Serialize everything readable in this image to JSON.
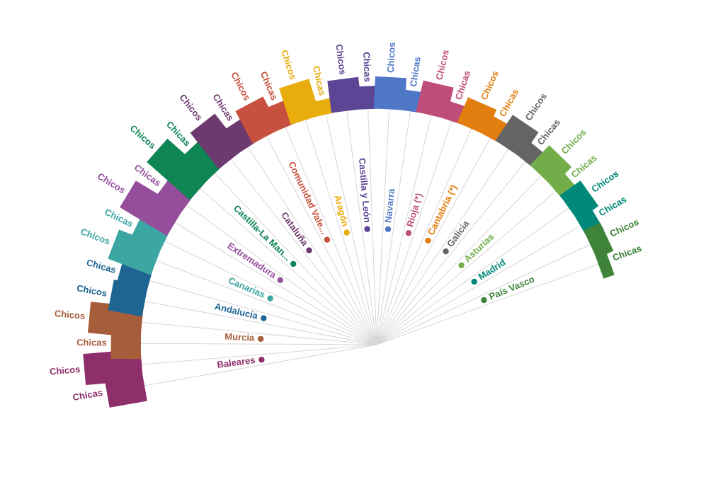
{
  "chart_data": {
    "type": "bar",
    "subtype": "radial",
    "value_scale": "relative (no axis printed; values read as bar lengths)",
    "series_labels": [
      "Chicos",
      "Chicas"
    ],
    "regions": [
      {
        "name": "Baleares",
        "color": "#8e2e6a",
        "bars": [
          {
            "label": "Chicas",
            "value": 83
          },
          {
            "label": "Chicos",
            "value": 125
          }
        ]
      },
      {
        "name": "Murcia",
        "color": "#a65d3a",
        "bars": [
          {
            "label": "Chicas",
            "value": 65
          },
          {
            "label": "Chicos",
            "value": 115
          }
        ]
      },
      {
        "name": "Andalucía",
        "color": "#1e6592",
        "bars": [
          {
            "label": "Chicos",
            "value": 75
          },
          {
            "label": "Chicas",
            "value": 68
          }
        ]
      },
      {
        "name": "Canarias",
        "color": "#3ca6a3",
        "bars": [
          {
            "label": "Chicos",
            "value": 100
          },
          {
            "label": "Chicas",
            "value": 70
          }
        ]
      },
      {
        "name": "Extremadura",
        "color": "#944e9b",
        "bars": [
          {
            "label": "Chicos",
            "value": 120
          },
          {
            "label": "Chicas",
            "value": 65
          }
        ]
      },
      {
        "name": "Castilla-La Man...",
        "color": "#0e8553",
        "bars": [
          {
            "label": "Chicos",
            "value": 125
          },
          {
            "label": "Chicas",
            "value": 75
          }
        ]
      },
      {
        "name": "Cataluña",
        "color": "#6c3a6e",
        "bars": [
          {
            "label": "Chicos",
            "value": 100
          },
          {
            "label": "Chicas",
            "value": 60
          }
        ]
      },
      {
        "name": "Comunidad Vale...",
        "color": "#c8503e",
        "bars": [
          {
            "label": "Chicos",
            "value": 80
          },
          {
            "label": "Chicas",
            "value": 55
          }
        ]
      },
      {
        "name": "Aragón",
        "color": "#e9ac0d",
        "bars": [
          {
            "label": "Chicos",
            "value": 83
          },
          {
            "label": "Chicas",
            "value": 33
          }
        ]
      },
      {
        "name": "Castilla y León",
        "color": "#5c4594",
        "bars": [
          {
            "label": "Chicos",
            "value": 70
          },
          {
            "label": "Chicas",
            "value": 50
          }
        ]
      },
      {
        "name": "Navarra",
        "color": "#4e77c6",
        "bars": [
          {
            "label": "Chicos",
            "value": 70
          },
          {
            "label": "Chicas",
            "value": 45
          }
        ]
      },
      {
        "name": "Rioja (*)",
        "color": "#bf4d79",
        "bars": [
          {
            "label": "Chicos",
            "value": 70
          },
          {
            "label": "Chicas",
            "value": 40
          }
        ]
      },
      {
        "name": "Cantabria (*)",
        "color": "#e27e10",
        "bars": [
          {
            "label": "Chicos",
            "value": 60
          },
          {
            "label": "Chicas",
            "value": 45
          }
        ]
      },
      {
        "name": "Galicia",
        "color": "#646464",
        "bars": [
          {
            "label": "Chicos",
            "value": 67
          },
          {
            "label": "Chicas",
            "value": 40
          }
        ]
      },
      {
        "name": "Asturias",
        "color": "#72ad4a",
        "bars": [
          {
            "label": "Chicos",
            "value": 60
          },
          {
            "label": "Chicas",
            "value": 40
          }
        ]
      },
      {
        "name": "Madrid",
        "color": "#00897a",
        "bars": [
          {
            "label": "Chicos",
            "value": 55
          },
          {
            "label": "Chicas",
            "value": 40
          }
        ]
      },
      {
        "name": "País Vasco",
        "color": "#3f833b",
        "bars": [
          {
            "label": "Chicos",
            "value": 40
          },
          {
            "label": "Chicas",
            "value": 25
          }
        ]
      }
    ]
  }
}
